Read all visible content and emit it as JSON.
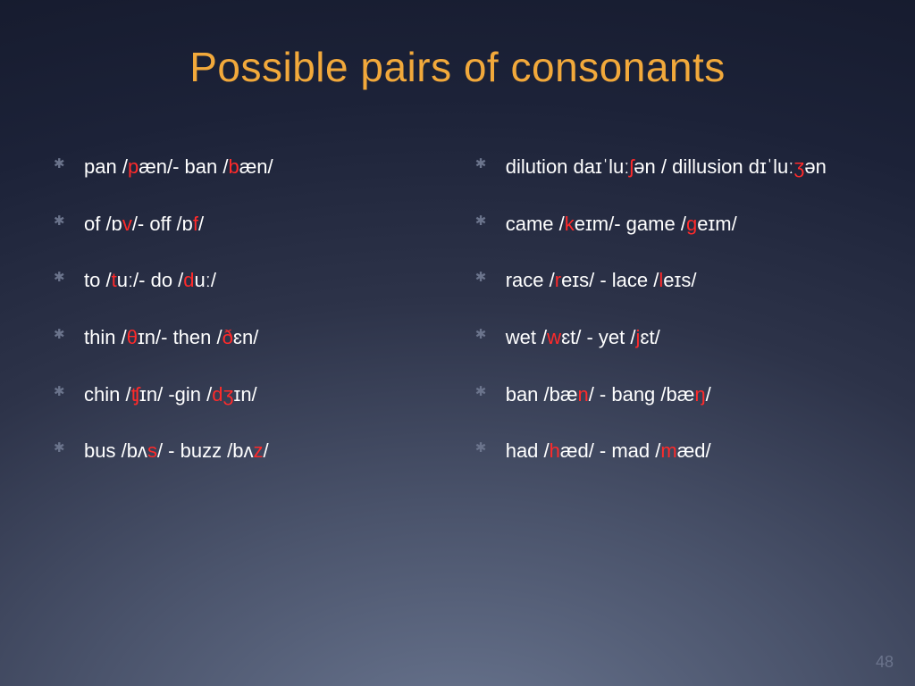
{
  "title": {
    "text": "Possible pairs of consonants",
    "color": "#f2a93b",
    "fontsize": 46
  },
  "list": {
    "fontsize": 22,
    "item_spacing": 34,
    "highlight_color": "#ff2a2a",
    "text_color": "#ffffff",
    "bullet_color": "#6b748c"
  },
  "left_items": [
    {
      "segs": [
        {
          "t": "pan /"
        },
        {
          "t": "p",
          "hl": true
        },
        {
          "t": "æn/- ban /"
        },
        {
          "t": "b",
          "hl": true
        },
        {
          "t": "æn/"
        }
      ]
    },
    {
      "segs": [
        {
          "t": "of /ɒ"
        },
        {
          "t": "v",
          "hl": true
        },
        {
          "t": "/- off /ɒ"
        },
        {
          "t": "f",
          "hl": true
        },
        {
          "t": "/"
        }
      ]
    },
    {
      "segs": [
        {
          "t": "to /"
        },
        {
          "t": "t",
          "hl": true
        },
        {
          "t": "uː/- do /"
        },
        {
          "t": "d",
          "hl": true
        },
        {
          "t": "uː/"
        }
      ]
    },
    {
      "segs": [
        {
          "t": "thin /"
        },
        {
          "t": "θ",
          "hl": true
        },
        {
          "t": "ɪn/-  then /"
        },
        {
          "t": "ð",
          "hl": true
        },
        {
          "t": "ɛn/"
        }
      ]
    },
    {
      "segs": [
        {
          "t": "chin /"
        },
        {
          "t": "ʧ",
          "hl": true
        },
        {
          "t": "ɪn/ -gin /"
        },
        {
          "t": "dʒ",
          "hl": true
        },
        {
          "t": "ɪn/"
        }
      ]
    },
    {
      "segs": [
        {
          "t": "bus /bʌ"
        },
        {
          "t": "s",
          "hl": true
        },
        {
          "t": "/ - buzz /bʌ"
        },
        {
          "t": "z",
          "hl": true
        },
        {
          "t": "/"
        }
      ]
    }
  ],
  "right_items": [
    {
      "segs": [
        {
          "t": "dilution daɪˈluː"
        },
        {
          "t": "ʃ",
          "hl": true
        },
        {
          "t": "ən / dillusion dɪˈluː"
        },
        {
          "t": "ʒ",
          "hl": true
        },
        {
          "t": "ən"
        }
      ]
    },
    {
      "segs": [
        {
          "t": "came /"
        },
        {
          "t": "k",
          "hl": true
        },
        {
          "t": "eɪm/-  game /"
        },
        {
          "t": "g",
          "hl": true
        },
        {
          "t": "eɪm/"
        }
      ]
    },
    {
      "segs": [
        {
          "t": "race /"
        },
        {
          "t": "r",
          "hl": true
        },
        {
          "t": "eɪs/ - lace /"
        },
        {
          "t": "l",
          "hl": true
        },
        {
          "t": "eɪs/"
        }
      ]
    },
    {
      "segs": [
        {
          "t": "wet /"
        },
        {
          "t": "w",
          "hl": true
        },
        {
          "t": "ɛt/ - yet /"
        },
        {
          "t": "j",
          "hl": true
        },
        {
          "t": "ɛt/"
        }
      ]
    },
    {
      "segs": [
        {
          "t": "ban /bæ"
        },
        {
          "t": "n",
          "hl": true
        },
        {
          "t": "/ - bang /bæ"
        },
        {
          "t": "ŋ",
          "hl": true
        },
        {
          "t": "/"
        }
      ]
    },
    {
      "segs": [
        {
          "t": "had /"
        },
        {
          "t": "h",
          "hl": true
        },
        {
          "t": "æd/ - mad /"
        },
        {
          "t": "m",
          "hl": true
        },
        {
          "t": "æd/"
        }
      ]
    }
  ],
  "page_number": "48"
}
